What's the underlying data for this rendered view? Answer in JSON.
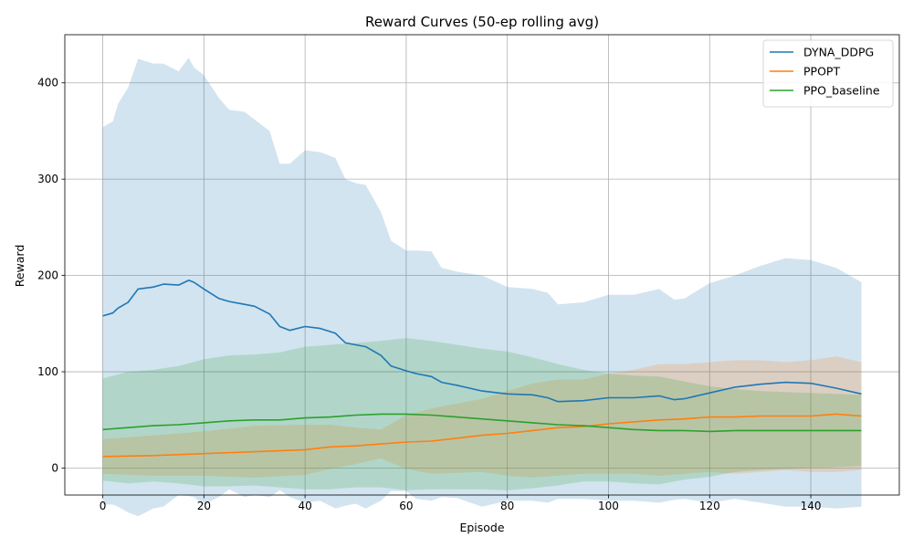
{
  "chart_data": {
    "type": "line",
    "title": "Reward Curves (50-ep rolling avg)",
    "xlabel": "Episode",
    "ylabel": "Reward",
    "xlim": [
      -7.5,
      157.5
    ],
    "ylim": [
      -28,
      450
    ],
    "xticks": [
      0,
      20,
      40,
      60,
      80,
      100,
      120,
      140
    ],
    "yticks": [
      0,
      100,
      200,
      300,
      400
    ],
    "grid": true,
    "legend_position": "top-right",
    "series": [
      {
        "name": "DYNA_DDPG",
        "color": "#1f77b4",
        "band_opacity": 0.2,
        "x": [
          0,
          2,
          3,
          5,
          7,
          10,
          12,
          15,
          17,
          18,
          20,
          23,
          25,
          28,
          30,
          33,
          35,
          37,
          40,
          43,
          46,
          48,
          50,
          52,
          55,
          57,
          60,
          62,
          65,
          67,
          70,
          75,
          80,
          85,
          88,
          90,
          95,
          100,
          105,
          110,
          113,
          115,
          120,
          125,
          130,
          135,
          140,
          145,
          150
        ],
        "mean": [
          158,
          161,
          166,
          172,
          186,
          188,
          191,
          190,
          195,
          193,
          186,
          176,
          173,
          170,
          168,
          160,
          147,
          143,
          147,
          145,
          140,
          130,
          128,
          126,
          117,
          106,
          101,
          98,
          95,
          89,
          86,
          80,
          77,
          76,
          73,
          69,
          70,
          73,
          73,
          75,
          71,
          72,
          78,
          84,
          87,
          89,
          88,
          83,
          77
        ],
        "upper": [
          354,
          360,
          378,
          395,
          425,
          420,
          420,
          412,
          426,
          416,
          408,
          384,
          372,
          370,
          362,
          350,
          316,
          316,
          330,
          328,
          322,
          300,
          296,
          294,
          266,
          236,
          226,
          226,
          225,
          208,
          204,
          200,
          188,
          186,
          182,
          170,
          172,
          180,
          180,
          186,
          175,
          176,
          192,
          200,
          210,
          218,
          216,
          208,
          193
        ],
        "lower": [
          -38,
          -38,
          -40,
          -46,
          -50,
          -42,
          -40,
          -28,
          -29,
          -30,
          -38,
          -30,
          -22,
          -30,
          -28,
          -30,
          -23,
          -30,
          -36,
          -34,
          -42,
          -39,
          -37,
          -42,
          -34,
          -24,
          -24,
          -32,
          -34,
          -30,
          -31,
          -40,
          -34,
          -34,
          -36,
          -32,
          -32,
          -34,
          -34,
          -36,
          -33,
          -32,
          -36,
          -32,
          -36,
          -40,
          -40,
          -42,
          -40
        ]
      },
      {
        "name": "PPOPT",
        "color": "#ff7f0e",
        "band_opacity": 0.2,
        "x": [
          0,
          10,
          20,
          30,
          40,
          45,
          50,
          55,
          60,
          65,
          70,
          75,
          80,
          85,
          90,
          95,
          100,
          105,
          110,
          115,
          120,
          125,
          130,
          135,
          140,
          145,
          150
        ],
        "mean": [
          12,
          13,
          15,
          17,
          19,
          22,
          23,
          25,
          27,
          28,
          31,
          34,
          36,
          39,
          42,
          43,
          46,
          48,
          50,
          51,
          53,
          53,
          54,
          54,
          54,
          56,
          54
        ],
        "upper": [
          30,
          34,
          38,
          44,
          45,
          45,
          42,
          40,
          55,
          62,
          67,
          72,
          80,
          88,
          92,
          92,
          98,
          102,
          108,
          108,
          110,
          112,
          112,
          110,
          112,
          116,
          110
        ],
        "lower": [
          -6,
          -8,
          -8,
          -10,
          -7,
          -1,
          4,
          10,
          -1,
          -6,
          -5,
          -4,
          -8,
          -10,
          -8,
          -6,
          -6,
          -6,
          -8,
          -6,
          -4,
          -6,
          -4,
          -2,
          -4,
          -4,
          -2
        ]
      },
      {
        "name": "PPO_baseline",
        "color": "#2ca02c",
        "band_opacity": 0.2,
        "x": [
          0,
          5,
          10,
          15,
          20,
          25,
          30,
          35,
          40,
          45,
          50,
          55,
          60,
          65,
          70,
          75,
          80,
          85,
          90,
          95,
          100,
          105,
          110,
          115,
          120,
          125,
          130,
          135,
          140,
          145,
          150
        ],
        "mean": [
          40,
          42,
          44,
          45,
          47,
          49,
          50,
          50,
          52,
          53,
          55,
          56,
          56,
          55,
          53,
          51,
          49,
          47,
          45,
          44,
          42,
          40,
          39,
          39,
          38,
          39,
          39,
          39,
          39,
          39,
          39
        ],
        "upper": [
          93,
          100,
          102,
          106,
          113,
          117,
          118,
          120,
          126,
          128,
          130,
          132,
          135,
          132,
          128,
          124,
          121,
          115,
          108,
          102,
          98,
          96,
          95,
          90,
          85,
          82,
          80,
          79,
          78,
          77,
          76
        ],
        "lower": [
          -13,
          -16,
          -14,
          -16,
          -19,
          -19,
          -18,
          -20,
          -22,
          -22,
          -20,
          -20,
          -23,
          -22,
          -22,
          -22,
          -23,
          -21,
          -18,
          -14,
          -14,
          -16,
          -17,
          -12,
          -9,
          -4,
          -2,
          -1,
          0,
          1,
          2
        ]
      }
    ]
  }
}
